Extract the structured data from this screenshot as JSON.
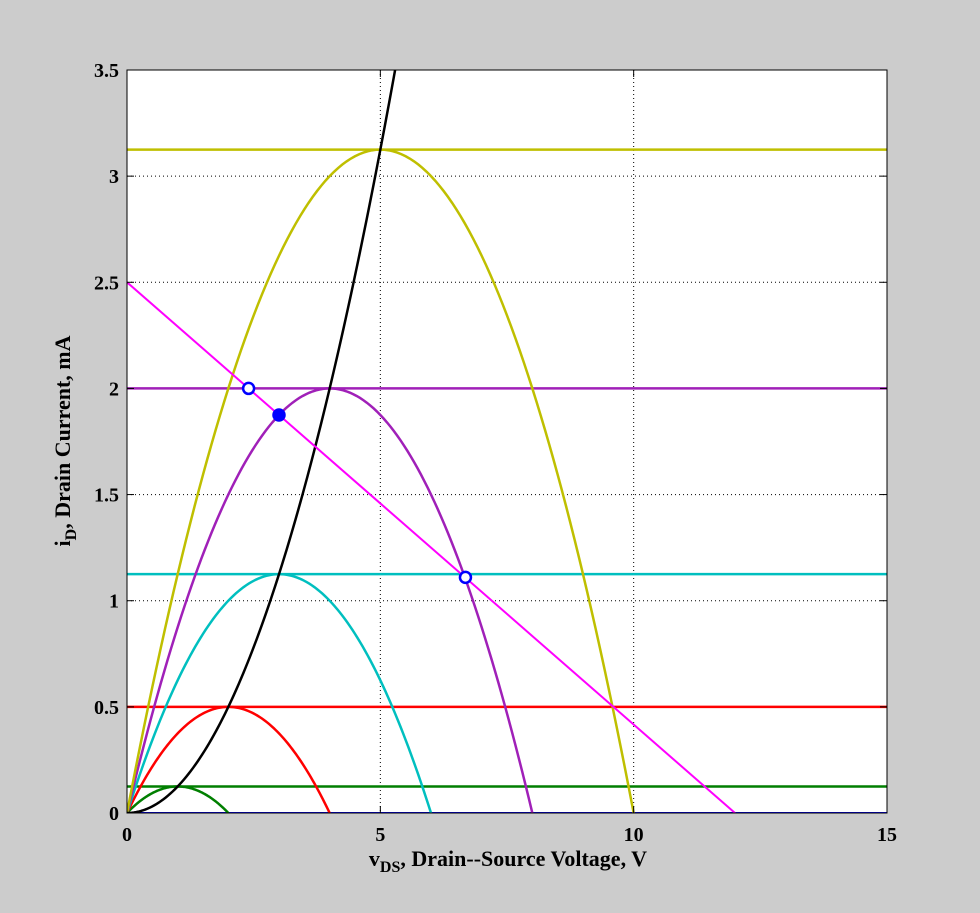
{
  "chart_data": {
    "type": "line",
    "xlabel": {
      "main": "v",
      "sub": "DS",
      "rest": ", Drain--Source Voltage, V"
    },
    "ylabel": {
      "main": "i",
      "sub": "D",
      "rest": ", Drain Current, mA"
    },
    "xlim": [
      0,
      15
    ],
    "ylim": [
      0,
      3.5
    ],
    "xticks": [
      0,
      5,
      10,
      15
    ],
    "yticks": [
      0,
      0.5,
      1,
      1.5,
      2,
      2.5,
      3,
      3.5
    ],
    "xtick_labels": [
      "0",
      "5",
      "10",
      "15"
    ],
    "ytick_labels": [
      "0",
      "0.5",
      "1",
      "1.5",
      "2",
      "2.5",
      "3",
      "3.5"
    ],
    "grid": true,
    "curve_params": {
      "k": 0.125
    },
    "series": [
      {
        "kind": "triode",
        "vov": 1,
        "color": "#007f00"
      },
      {
        "kind": "triode",
        "vov": 2,
        "color": "#ff0000"
      },
      {
        "kind": "triode",
        "vov": 3,
        "color": "#00bfbf"
      },
      {
        "kind": "triode",
        "vov": 4,
        "color": "#a020b8"
      },
      {
        "kind": "triode",
        "vov": 5,
        "color": "#bfbf00"
      },
      {
        "kind": "boundary",
        "color": "#000000"
      },
      {
        "kind": "load_line",
        "x": [
          0,
          12
        ],
        "y": [
          2.5,
          0
        ],
        "color": "#ff00ff"
      }
    ],
    "markers": [
      {
        "x": 2.4,
        "y": 2.0,
        "filled": false,
        "color": "#0000ff"
      },
      {
        "x": 3.0,
        "y": 1.875,
        "filled": true,
        "color": "#0000ff"
      },
      {
        "x": 6.68,
        "y": 1.11,
        "filled": false,
        "color": "#0000ff"
      }
    ]
  }
}
